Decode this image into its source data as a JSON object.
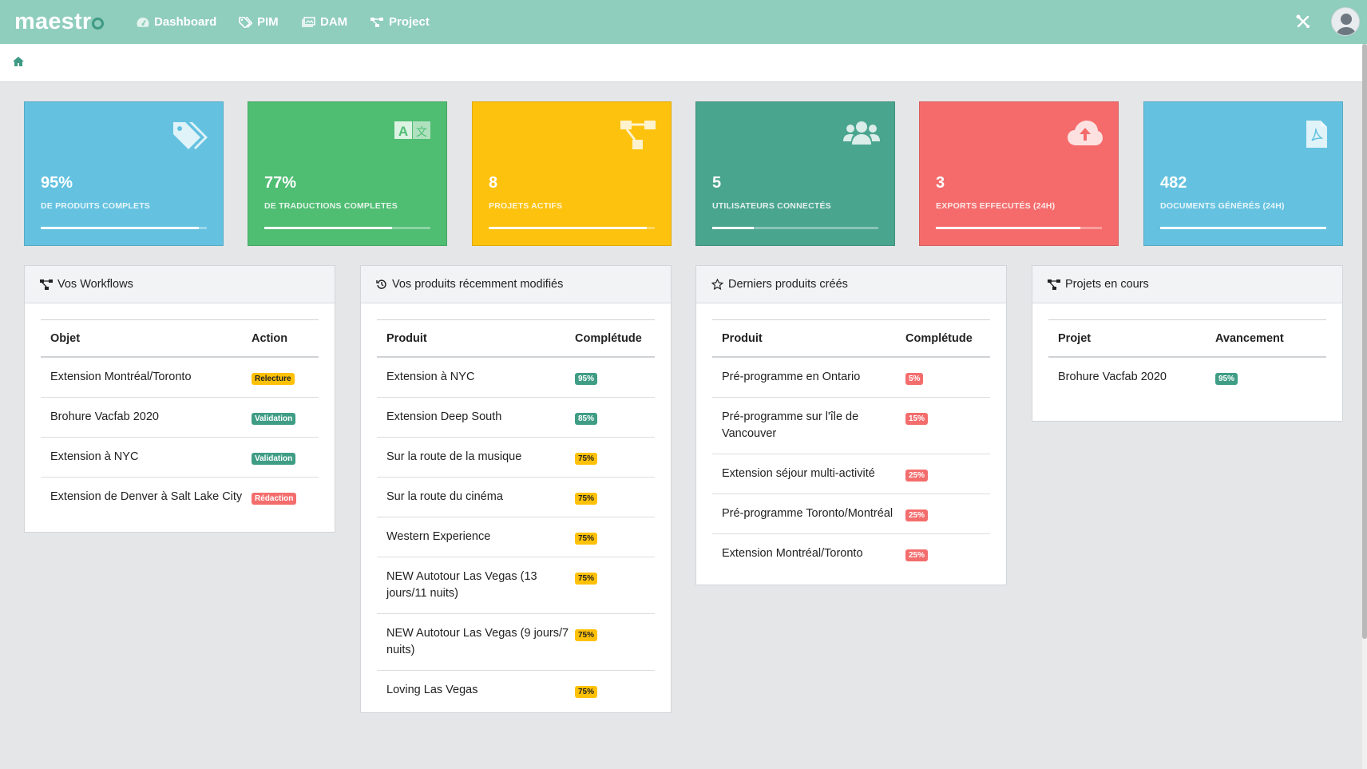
{
  "app": {
    "logo": "maestr"
  },
  "nav": [
    {
      "label": "Dashboard",
      "icon": "dashboard-icon"
    },
    {
      "label": "PIM",
      "icon": "tags-icon"
    },
    {
      "label": "DAM",
      "icon": "images-icon"
    },
    {
      "label": "Project",
      "icon": "sitemap-icon"
    }
  ],
  "colors": {
    "topbar": "#8fcdbd",
    "blue": "#64c2e0",
    "green": "#4fbd72",
    "yellow": "#fdc20e",
    "teal": "#4aa58f",
    "red": "#f56b6b"
  },
  "stats": [
    {
      "value": "95%",
      "label": "DE PRODUITS COMPLETS",
      "progress": 0.95,
      "color": "#64c2e0",
      "icon": "tags-icon"
    },
    {
      "value": "77%",
      "label": "DE TRADUCTIONS COMPLETES",
      "progress": 0.77,
      "color": "#4fbd72",
      "icon": "language-icon"
    },
    {
      "value": "8",
      "label": "PROJETS ACTIFS",
      "progress": 0.95,
      "color": "#fdc20e",
      "icon": "sitemap-icon"
    },
    {
      "value": "5",
      "label": "UTILISATEURS CONNECTÉS",
      "progress": 0.25,
      "color": "#4aa58f",
      "icon": "users-icon"
    },
    {
      "value": "3",
      "label": "EXPORTS EFFECUTÉS (24H)",
      "progress": 0.87,
      "color": "#f56b6b",
      "icon": "cloud-upload-icon"
    },
    {
      "value": "482",
      "label": "DOCUMENTS GÉNÉRÉS (24H)",
      "progress": 1.0,
      "color": "#64c2e0",
      "icon": "file-pdf-icon"
    }
  ],
  "panels": [
    {
      "title": "Vos Workflows",
      "icon": "sitemap-icon",
      "col1": "Objet",
      "col2": "Action",
      "rows": [
        {
          "name": "Extension Montréal/Toronto",
          "badge": "Relecture",
          "kind": "yellow"
        },
        {
          "name": "Brohure Vacfab 2020",
          "badge": "Validation",
          "kind": "teal"
        },
        {
          "name": "Extension à NYC",
          "badge": "Validation",
          "kind": "teal"
        },
        {
          "name": "Extension de Denver à Salt Lake City",
          "badge": "Rédaction",
          "kind": "red"
        }
      ]
    },
    {
      "title": "Vos produits récemment modifiés",
      "icon": "history-icon",
      "col1": "Produit",
      "col2": "Complétude",
      "rows": [
        {
          "name": "Extension à NYC",
          "badge": "95%",
          "kind": "teal"
        },
        {
          "name": "Extension Deep South",
          "badge": "85%",
          "kind": "teal"
        },
        {
          "name": "Sur la route de la musique",
          "badge": "75%",
          "kind": "yellow"
        },
        {
          "name": "Sur la route du cinéma",
          "badge": "75%",
          "kind": "yellow"
        },
        {
          "name": "Western Experience",
          "badge": "75%",
          "kind": "yellow"
        },
        {
          "name": "NEW Autotour Las Vegas (13 jours/11 nuits)",
          "badge": "75%",
          "kind": "yellow"
        },
        {
          "name": "NEW Autotour Las Vegas (9 jours/7 nuits)",
          "badge": "75%",
          "kind": "yellow"
        },
        {
          "name": "Loving Las Vegas",
          "badge": "75%",
          "kind": "yellow"
        }
      ]
    },
    {
      "title": "Derniers produits créés",
      "icon": "star-icon",
      "col1": "Produit",
      "col2": "Complétude",
      "rows": [
        {
          "name": "Pré-programme en Ontario",
          "badge": "5%",
          "kind": "red"
        },
        {
          "name": "Pré-programme sur l'île de Vancouver",
          "badge": "15%",
          "kind": "red"
        },
        {
          "name": "Extension séjour multi-activité",
          "badge": "25%",
          "kind": "red"
        },
        {
          "name": "Pré-programme Toronto/Montréal",
          "badge": "25%",
          "kind": "red"
        },
        {
          "name": "Extension Montréal/Toronto",
          "badge": "25%",
          "kind": "red"
        }
      ]
    },
    {
      "title": "Projets en cours",
      "icon": "sitemap-icon",
      "col1": "Projet",
      "col2": "Avancement",
      "rows": [
        {
          "name": "Brohure Vacfab 2020",
          "badge": "95%",
          "kind": "teal"
        }
      ]
    }
  ]
}
